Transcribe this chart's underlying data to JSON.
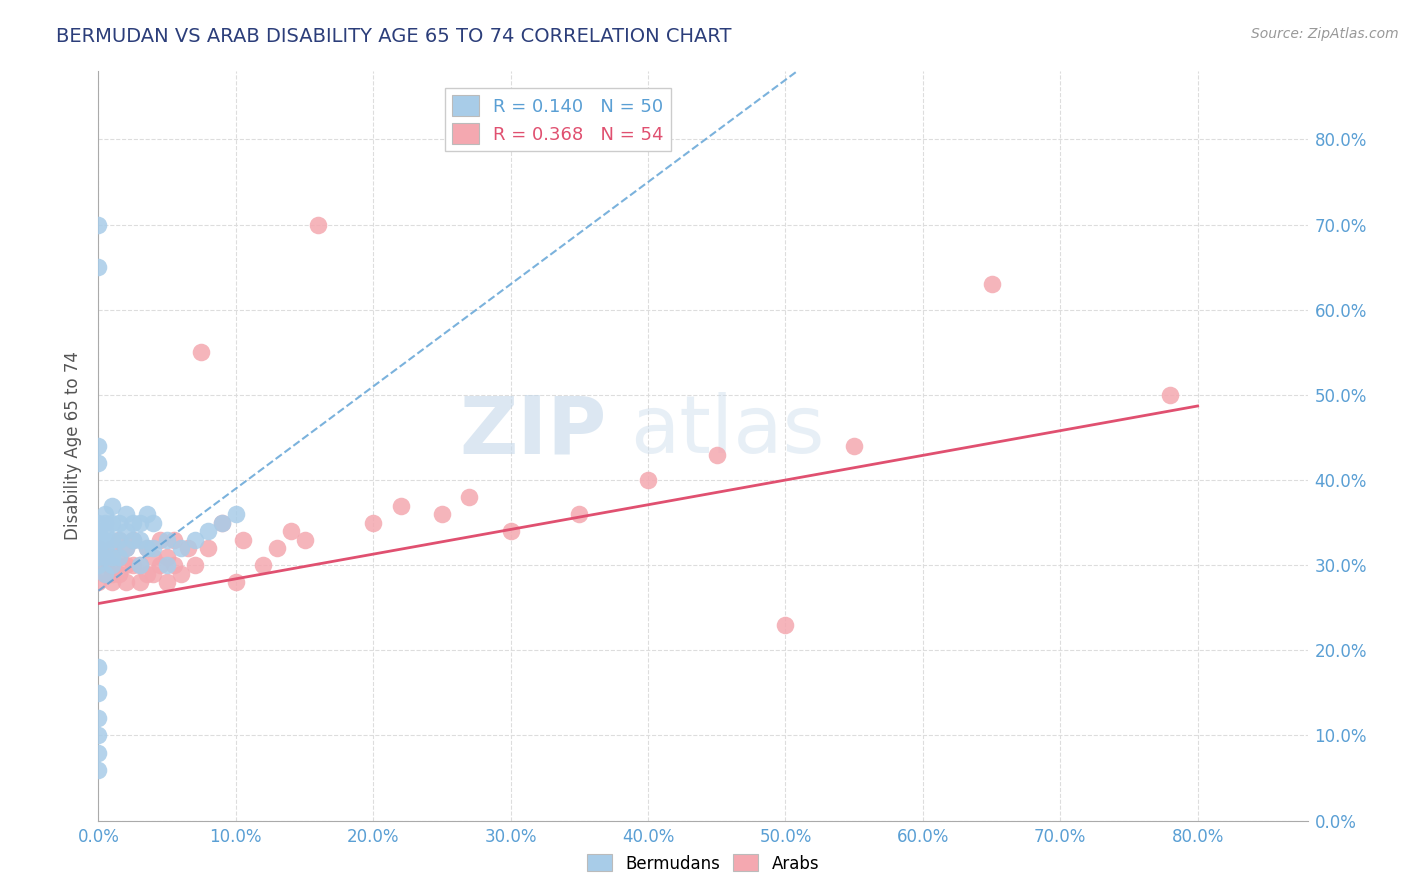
{
  "title": "BERMUDAN VS ARAB DISABILITY AGE 65 TO 74 CORRELATION CHART",
  "source": "Source: ZipAtlas.com",
  "ylabel": "Disability Age 65 to 74",
  "ylim": [
    0.0,
    0.88
  ],
  "xlim": [
    0.0,
    0.88
  ],
  "bermudan_R": 0.14,
  "bermudan_N": 50,
  "arab_R": 0.368,
  "arab_N": 54,
  "bermudan_color": "#a8cce8",
  "arab_color": "#f4a8b0",
  "bermudan_line_color": "#5a9fd4",
  "arab_line_color": "#e05070",
  "title_color": "#2c3e7a",
  "source_color": "#999999",
  "background_color": "#ffffff",
  "grid_color": "#dddddd",
  "watermark_zip": "ZIP",
  "watermark_atlas": "atlas",
  "bermudans_x": [
    0.0,
    0.0,
    0.0,
    0.0,
    0.0,
    0.0,
    0.0,
    0.0,
    0.0,
    0.0,
    0.005,
    0.005,
    0.005,
    0.005,
    0.005,
    0.005,
    0.005,
    0.01,
    0.01,
    0.01,
    0.01,
    0.01,
    0.015,
    0.015,
    0.015,
    0.02,
    0.02,
    0.02,
    0.025,
    0.025,
    0.03,
    0.03,
    0.03,
    0.035,
    0.035,
    0.04,
    0.04,
    0.05,
    0.05,
    0.06,
    0.07,
    0.08,
    0.09,
    0.1,
    0.0,
    0.0,
    0.0,
    0.0,
    0.0,
    0.0
  ],
  "bermudans_y": [
    0.3,
    0.31,
    0.32,
    0.33,
    0.34,
    0.35,
    0.42,
    0.44,
    0.06,
    0.08,
    0.29,
    0.31,
    0.32,
    0.33,
    0.34,
    0.35,
    0.36,
    0.3,
    0.31,
    0.33,
    0.35,
    0.37,
    0.31,
    0.33,
    0.35,
    0.32,
    0.34,
    0.36,
    0.33,
    0.35,
    0.3,
    0.33,
    0.35,
    0.32,
    0.36,
    0.32,
    0.35,
    0.3,
    0.33,
    0.32,
    0.33,
    0.34,
    0.35,
    0.36,
    0.65,
    0.7,
    0.1,
    0.12,
    0.15,
    0.18
  ],
  "arabs_x": [
    0.0,
    0.0,
    0.0,
    0.005,
    0.005,
    0.01,
    0.01,
    0.01,
    0.01,
    0.015,
    0.015,
    0.015,
    0.02,
    0.02,
    0.02,
    0.025,
    0.025,
    0.03,
    0.03,
    0.035,
    0.035,
    0.04,
    0.04,
    0.045,
    0.045,
    0.05,
    0.05,
    0.055,
    0.055,
    0.06,
    0.065,
    0.07,
    0.075,
    0.08,
    0.09,
    0.1,
    0.105,
    0.12,
    0.13,
    0.14,
    0.15,
    0.16,
    0.2,
    0.22,
    0.25,
    0.27,
    0.3,
    0.35,
    0.4,
    0.45,
    0.5,
    0.55,
    0.65,
    0.78
  ],
  "arabs_y": [
    0.28,
    0.3,
    0.32,
    0.29,
    0.31,
    0.28,
    0.29,
    0.3,
    0.32,
    0.29,
    0.31,
    0.33,
    0.28,
    0.3,
    0.32,
    0.3,
    0.33,
    0.28,
    0.3,
    0.29,
    0.32,
    0.29,
    0.31,
    0.3,
    0.33,
    0.28,
    0.31,
    0.3,
    0.33,
    0.29,
    0.32,
    0.3,
    0.55,
    0.32,
    0.35,
    0.28,
    0.33,
    0.3,
    0.32,
    0.34,
    0.33,
    0.7,
    0.35,
    0.37,
    0.36,
    0.38,
    0.34,
    0.36,
    0.4,
    0.43,
    0.23,
    0.44,
    0.63,
    0.5
  ]
}
